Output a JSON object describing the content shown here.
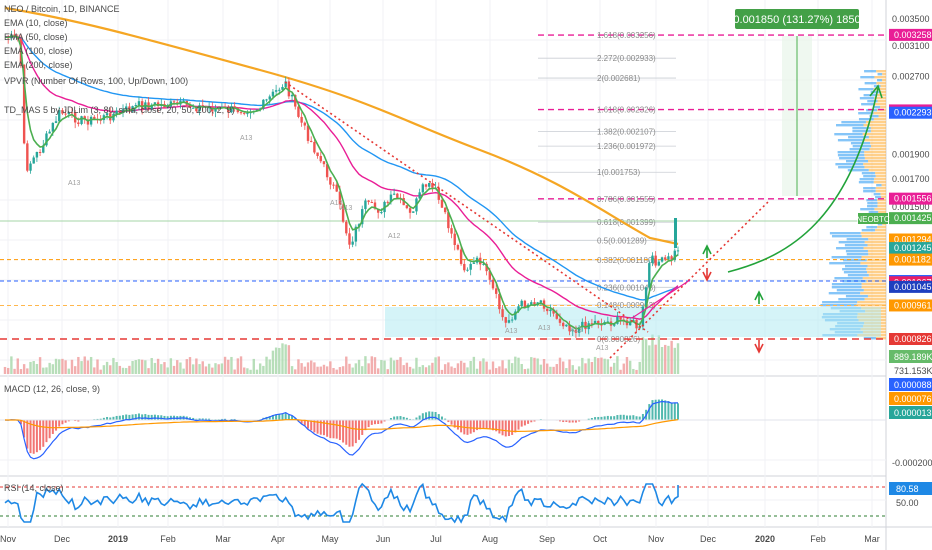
{
  "legend": {
    "symbol": "NEO / Bitcoin, 1D, BINANCE",
    "ema10": "EMA (10, close)",
    "ema50": "EMA (50, close)",
    "ema100": "EMA (100, close)",
    "ema200": "EMA (200, close)",
    "vpvr": "VPVR (Number Of Rows, 100, Up/Down, 100)",
    "td": "TD_MAS 5 by JDLim (3, 80, sma, close, 20, 50, 200, 2, 9)"
  },
  "measure_label": "0.001850 (131.27%) 1850",
  "fib_levels": [
    {
      "label": "1.618(0.003256)",
      "value": 0.003256
    },
    {
      "label": "2.272(0.002933)",
      "value": 0.002933
    },
    {
      "label": "2(0.002681)",
      "value": 0.002681
    },
    {
      "label": "1.618(0.002326)",
      "value": 0.002326
    },
    {
      "label": "1.382(0.002107)",
      "value": 0.002107
    },
    {
      "label": "1.236(0.001972)",
      "value": 0.001972
    },
    {
      "label": "1(0.001753)",
      "value": 0.001753
    },
    {
      "label": "0.786(0.001555)",
      "value": 0.001555
    },
    {
      "label": "0.618(0.001399)",
      "value": 0.001399
    },
    {
      "label": "0.5(0.001289)",
      "value": 0.001289
    },
    {
      "label": "0.382(0.001180)",
      "value": 0.00118
    },
    {
      "label": "0.236(0.001043)",
      "value": 0.001043
    },
    {
      "label": "0.148(0.000963)",
      "value": 0.000963
    },
    {
      "label": "0(0.000826)",
      "value": 0.000826
    }
  ],
  "price_axis": [
    {
      "label": "0.003500",
      "value": 0.0035
    },
    {
      "label": "0.003100",
      "value": 0.0031
    },
    {
      "label": "0.002700",
      "value": 0.0027
    },
    {
      "label": "0.001900",
      "value": 0.0019
    },
    {
      "label": "0.001700",
      "value": 0.0017
    },
    {
      "label": "0.001500",
      "value": 0.0015
    }
  ],
  "price_tags": [
    {
      "label": "0.003258",
      "value": 0.003258,
      "color": "#e91e96"
    },
    {
      "label": "0.002317",
      "value": 0.002317,
      "color": "#e91e96"
    },
    {
      "label": "0.002293",
      "value": 0.002293,
      "color": "#2962ff"
    },
    {
      "label": "0.001556",
      "value": 0.001556,
      "color": "#e91e96"
    },
    {
      "label": "0.001425",
      "value": 0.001425,
      "color": "#4caf50"
    },
    {
      "label": "0.001294",
      "value": 0.001294,
      "color": "#ff9800"
    },
    {
      "label": "0.001245",
      "value": 0.001245,
      "color": "#26a69a"
    },
    {
      "label": "0.001182",
      "value": 0.001182,
      "color": "#ff9800"
    },
    {
      "label": "0.001073",
      "value": 0.001073,
      "color": "#2962ff"
    },
    {
      "label": "0.001067",
      "value": 0.001067,
      "color": "#e91e63"
    },
    {
      "label": "0.001045",
      "value": 0.001045,
      "color": "#1e3fbf"
    },
    {
      "label": "0.000961",
      "value": 0.000961,
      "color": "#ff9800"
    },
    {
      "label": "0.000826",
      "value": 0.000826,
      "color": "#e53935"
    }
  ],
  "symbol_tag": "NEOBTC",
  "volume_tags": [
    "889.189K",
    "731.153K"
  ],
  "macd": {
    "title": "MACD (12, 26, close, 9)",
    "tags": [
      {
        "label": "0.000088",
        "color": "#2962ff"
      },
      {
        "label": "0.000076",
        "color": "#ff9800"
      },
      {
        "label": "0.000013",
        "color": "#26a69a"
      }
    ],
    "axis": "-0.000200"
  },
  "rsi": {
    "title": "RSI (14, close)",
    "value": "80.58",
    "level": "50.00"
  },
  "dates": [
    "Nov",
    "Dec",
    "2019",
    "Feb",
    "Mar",
    "Apr",
    "May",
    "Jun",
    "Jul",
    "Aug",
    "Sep",
    "Oct",
    "Nov",
    "Dec",
    "2020",
    "Feb",
    "Mar"
  ],
  "markers": [
    "A13",
    "A13",
    "A13",
    "A13",
    "A12",
    "A13",
    "A13",
    "A13",
    "A13"
  ],
  "colors": {
    "ema10": "#4caf50",
    "ema50": "#e91e96",
    "ema100": "#2196f3",
    "ema200": "#f5a623",
    "up": "#26a69a",
    "down": "#ef5350",
    "fib_mag": "#e91e96",
    "measure": "#4caf50"
  }
}
